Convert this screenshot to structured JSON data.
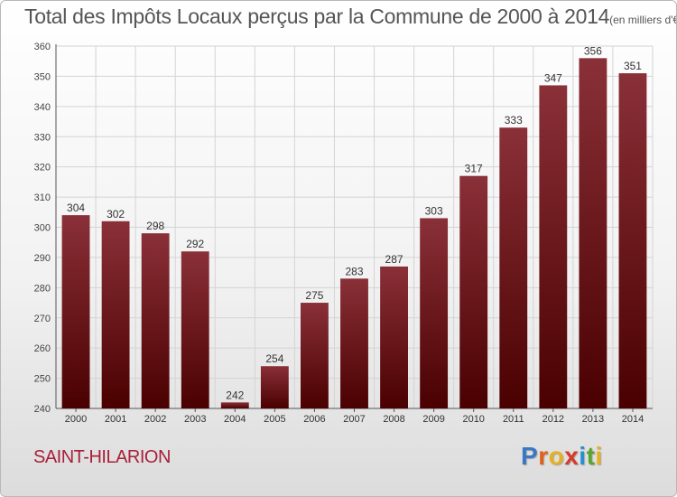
{
  "title": {
    "main": "Total des Impôts Locaux perçus par la Commune de 2000 à 2014",
    "unit": "(en milliers d'€)"
  },
  "commune": "SAINT-HILARION",
  "logo": {
    "letters": [
      "P",
      "r",
      "o",
      "x",
      "i",
      "t",
      "i"
    ],
    "colors": [
      "#3a77c4",
      "#e0601a",
      "#e8b020",
      "#d63a28",
      "#2a8fd0",
      "#5aa52e",
      "#e8b020"
    ]
  },
  "chart_data": {
    "type": "bar",
    "title": "Total des Impôts Locaux perçus par la Commune de 2000 à 2014",
    "xlabel": "",
    "ylabel": "",
    "categories": [
      "2000",
      "2001",
      "2002",
      "2003",
      "2004",
      "2005",
      "2006",
      "2007",
      "2008",
      "2009",
      "2010",
      "2011",
      "2012",
      "2013",
      "2014"
    ],
    "values": [
      304,
      302,
      298,
      292,
      242,
      254,
      275,
      283,
      287,
      303,
      317,
      333,
      347,
      356,
      351
    ],
    "ylim": [
      240,
      360
    ],
    "yticks": [
      240,
      250,
      260,
      270,
      280,
      290,
      300,
      310,
      320,
      330,
      340,
      350,
      360
    ],
    "grid": true,
    "bar_color_top": "#8a3038",
    "bar_color_bottom": "#4a0000"
  }
}
